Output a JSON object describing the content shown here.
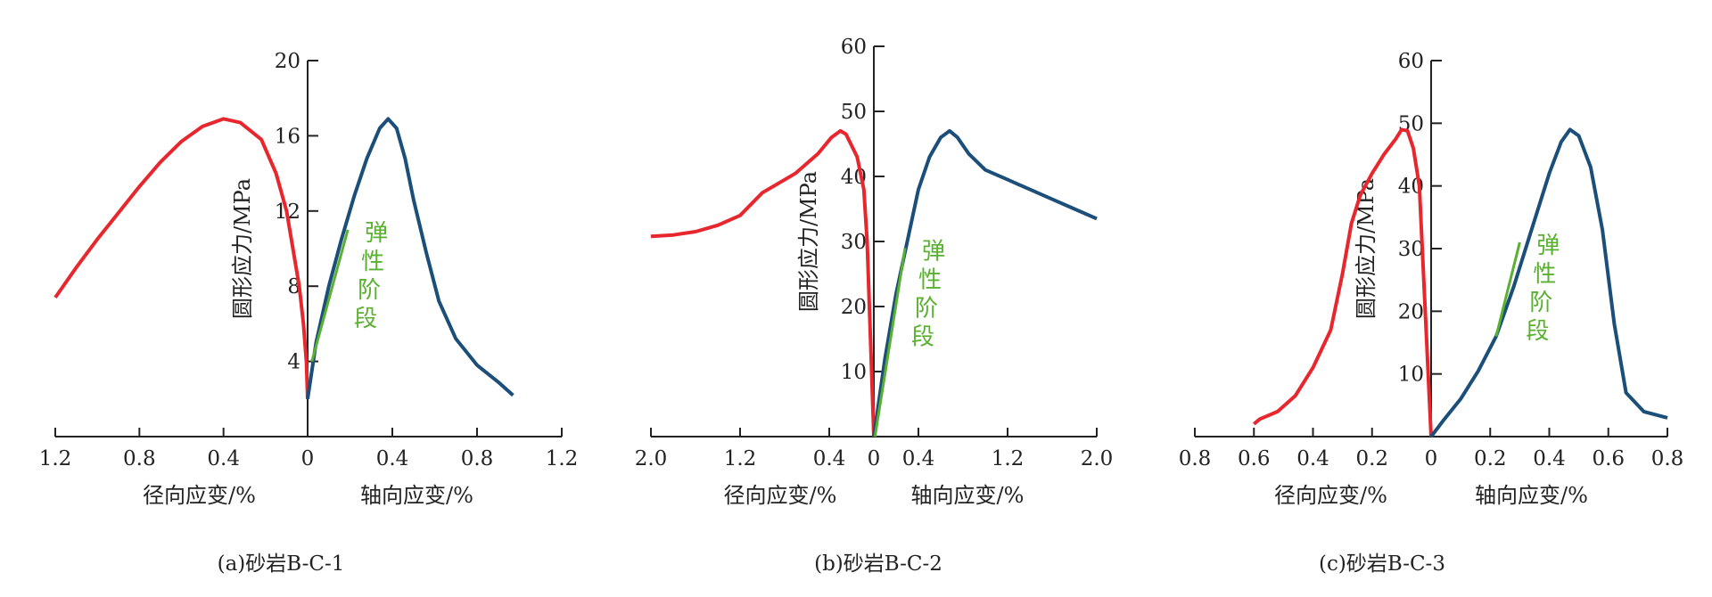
{
  "colors": {
    "radial": "#e8262d",
    "axial": "#1b4f7a",
    "elastic": "#5ab030",
    "axis": "#222222"
  },
  "chart_data": [
    {
      "type": "line",
      "caption": "(a)砂岩B-C-1",
      "ylabel": "圆形应力/MPa",
      "xlabel_left": "径向应变/%",
      "xlabel_right": "轴向应变/%",
      "annotation": [
        "弹",
        "性",
        "阶",
        "段"
      ],
      "ylim": [
        0,
        20
      ],
      "yticks": [
        4,
        8,
        12,
        16,
        20
      ],
      "x_left_range": 1.2,
      "x_right_range": 1.2,
      "xticks_left": [
        1.2,
        0.8,
        0.4,
        0
      ],
      "xticks_right": [
        0.4,
        0.8,
        1.2
      ],
      "radial_curve": [
        [
          0,
          2
        ],
        [
          0.006,
          4
        ],
        [
          0.02,
          6
        ],
        [
          0.04,
          8
        ],
        [
          0.07,
          10
        ],
        [
          0.1,
          12
        ],
        [
          0.15,
          14
        ],
        [
          0.22,
          15.8
        ],
        [
          0.32,
          16.7
        ],
        [
          0.4,
          16.9
        ],
        [
          0.5,
          16.5
        ],
        [
          0.6,
          15.7
        ],
        [
          0.7,
          14.6
        ],
        [
          0.8,
          13.3
        ],
        [
          0.9,
          11.9
        ],
        [
          1.0,
          10.5
        ],
        [
          1.1,
          9
        ],
        [
          1.2,
          7.4
        ]
      ],
      "axial_curve": [
        [
          0,
          2
        ],
        [
          0.04,
          5
        ],
        [
          0.1,
          8
        ],
        [
          0.16,
          10.5
        ],
        [
          0.22,
          12.8
        ],
        [
          0.28,
          14.8
        ],
        [
          0.34,
          16.4
        ],
        [
          0.38,
          16.9
        ],
        [
          0.42,
          16.4
        ],
        [
          0.46,
          14.8
        ],
        [
          0.5,
          12.6
        ],
        [
          0.56,
          9.8
        ],
        [
          0.62,
          7.2
        ],
        [
          0.7,
          5.2
        ],
        [
          0.8,
          3.8
        ],
        [
          0.9,
          2.9
        ],
        [
          0.97,
          2.2
        ]
      ],
      "elastic_line": [
        [
          0.02,
          4
        ],
        [
          0.19,
          11
        ]
      ]
    },
    {
      "type": "line",
      "caption": "(b)砂岩B-C-2",
      "ylabel": "圆形应力/MPa",
      "xlabel_left": "径向应变/%",
      "xlabel_right": "轴向应变/%",
      "annotation": [
        "弹",
        "性",
        "阶",
        "段"
      ],
      "ylim": [
        0,
        60
      ],
      "yticks": [
        10,
        20,
        30,
        40,
        50,
        60
      ],
      "x_left_range": 2.0,
      "x_right_range": 2.0,
      "xticks_left": [
        2.0,
        1.2,
        0.4,
        0
      ],
      "xticks_right": [
        0.4,
        1.2,
        2.0
      ],
      "radial_curve": [
        [
          0,
          0
        ],
        [
          0.02,
          10
        ],
        [
          0.04,
          20
        ],
        [
          0.06,
          30
        ],
        [
          0.09,
          38
        ],
        [
          0.15,
          43
        ],
        [
          0.25,
          46.5
        ],
        [
          0.3,
          47
        ],
        [
          0.38,
          46
        ],
        [
          0.5,
          43.5
        ],
        [
          0.7,
          40.5
        ],
        [
          1.0,
          37.5
        ],
        [
          1.2,
          34
        ],
        [
          1.4,
          32.5
        ],
        [
          1.6,
          31.5
        ],
        [
          1.8,
          31
        ],
        [
          2.0,
          30.8
        ]
      ],
      "axial_curve": [
        [
          0,
          0
        ],
        [
          0.1,
          12
        ],
        [
          0.2,
          22
        ],
        [
          0.3,
          30
        ],
        [
          0.4,
          38
        ],
        [
          0.5,
          43
        ],
        [
          0.6,
          46
        ],
        [
          0.68,
          47
        ],
        [
          0.75,
          46
        ],
        [
          0.85,
          43.5
        ],
        [
          1.0,
          41
        ],
        [
          1.2,
          39.5
        ],
        [
          1.4,
          38
        ],
        [
          1.6,
          36.5
        ],
        [
          1.8,
          35
        ],
        [
          2.0,
          33.5
        ]
      ],
      "elastic_line": [
        [
          0.01,
          0
        ],
        [
          0.28,
          29
        ]
      ]
    },
    {
      "type": "line",
      "caption": "(c)砂岩B-C-3",
      "ylabel": "圆形应力/MPa",
      "xlabel_left": "径向应变/%",
      "xlabel_right": "轴向应变/%",
      "annotation": [
        "弹",
        "性",
        "阶",
        "段"
      ],
      "ylim": [
        0,
        60
      ],
      "yticks": [
        10,
        20,
        30,
        40,
        50,
        60
      ],
      "x_left_range": 0.8,
      "x_right_range": 0.8,
      "xticks_left": [
        0.8,
        0.6,
        0.4,
        0.2,
        0
      ],
      "xticks_right": [
        0.2,
        0.4,
        0.6,
        0.8
      ],
      "radial_curve": [
        [
          0,
          0
        ],
        [
          0.01,
          10
        ],
        [
          0.02,
          20
        ],
        [
          0.03,
          30
        ],
        [
          0.04,
          40
        ],
        [
          0.06,
          46
        ],
        [
          0.08,
          48.8
        ],
        [
          0.1,
          49
        ],
        [
          0.12,
          47.5
        ],
        [
          0.16,
          45
        ],
        [
          0.2,
          42
        ],
        [
          0.24,
          38.5
        ],
        [
          0.27,
          34
        ],
        [
          0.3,
          26
        ],
        [
          0.34,
          17
        ],
        [
          0.4,
          11
        ],
        [
          0.46,
          6.5
        ],
        [
          0.52,
          4
        ],
        [
          0.58,
          2.8
        ],
        [
          0.6,
          2
        ]
      ],
      "axial_curve": [
        [
          0,
          0
        ],
        [
          0.04,
          2.5
        ],
        [
          0.1,
          6
        ],
        [
          0.16,
          10.5
        ],
        [
          0.22,
          16
        ],
        [
          0.28,
          24
        ],
        [
          0.34,
          33
        ],
        [
          0.4,
          42
        ],
        [
          0.44,
          47
        ],
        [
          0.47,
          49
        ],
        [
          0.5,
          48
        ],
        [
          0.54,
          43
        ],
        [
          0.58,
          33
        ],
        [
          0.62,
          18
        ],
        [
          0.66,
          7
        ],
        [
          0.72,
          4
        ],
        [
          0.8,
          3
        ]
      ],
      "elastic_line": [
        [
          0.22,
          16
        ],
        [
          0.3,
          31
        ]
      ]
    }
  ]
}
